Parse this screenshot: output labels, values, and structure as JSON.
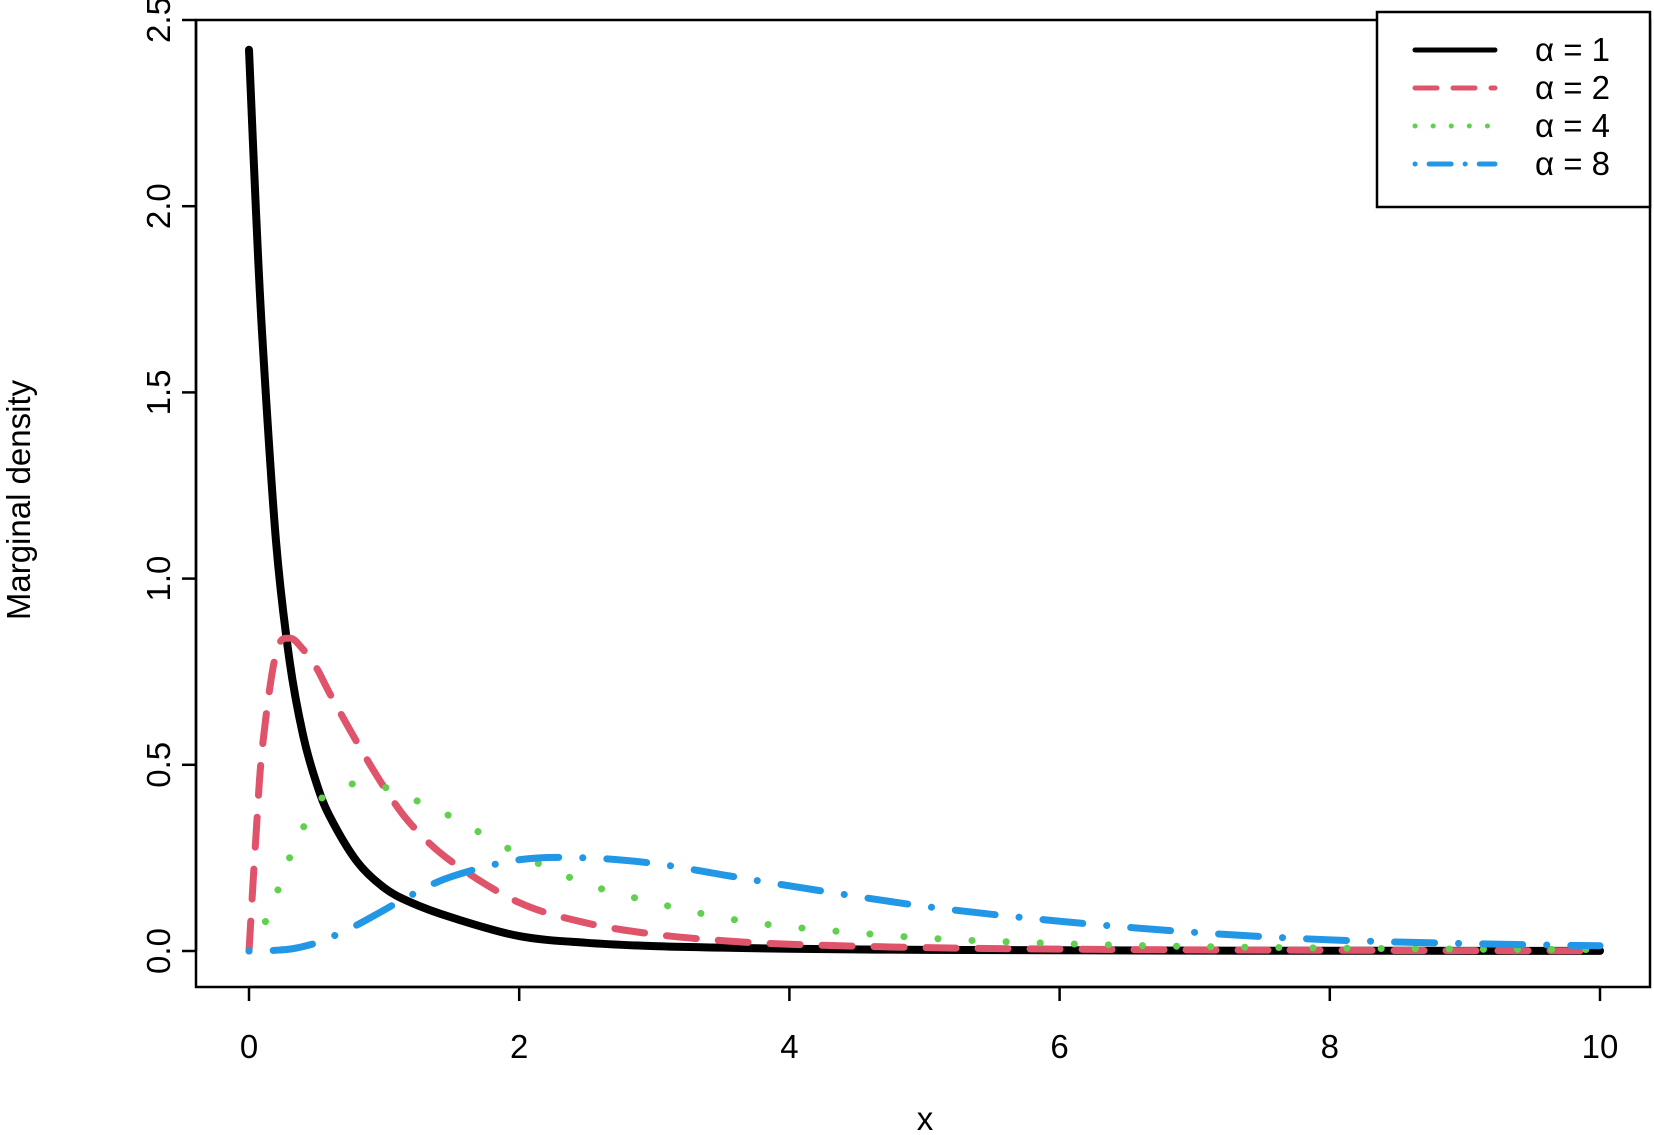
{
  "chart_data": {
    "type": "line",
    "xlabel": "x",
    "ylabel": "Marginal density",
    "xlim": [
      0,
      10
    ],
    "ylim": [
      0,
      2.5
    ],
    "x_ticks": [
      "0",
      "2",
      "4",
      "6",
      "8",
      "10"
    ],
    "y_ticks": [
      "0.0",
      "0.5",
      "1.0",
      "1.5",
      "2.0",
      "2.5"
    ],
    "grid": false,
    "legend_position": "top-right",
    "x": [
      0,
      0.05,
      0.1,
      0.2,
      0.3,
      0.4,
      0.5,
      0.6,
      0.8,
      1.0,
      1.2,
      1.5,
      2.0,
      2.5,
      3.0,
      3.5,
      4.0,
      5.0,
      6.0,
      7.0,
      8.0,
      9.0,
      10.0
    ],
    "series": [
      {
        "name": "α = 1",
        "color": "#000000",
        "style": "solid",
        "values": [
          2.42,
          2.0,
          1.64,
          1.1,
          0.78,
          0.58,
          0.45,
          0.36,
          0.24,
          0.17,
          0.13,
          0.09,
          0.04,
          0.022,
          0.013,
          0.009,
          0.006,
          0.003,
          0.002,
          0.001,
          0.0007,
          0.0005,
          0.0003
        ]
      },
      {
        "name": "α = 2",
        "color": "#DF536B",
        "style": "dashed",
        "values": [
          0.0,
          0.3,
          0.55,
          0.8,
          0.84,
          0.81,
          0.76,
          0.69,
          0.56,
          0.44,
          0.34,
          0.24,
          0.13,
          0.075,
          0.045,
          0.028,
          0.018,
          0.009,
          0.005,
          0.003,
          0.002,
          0.001,
          0.0007
        ]
      },
      {
        "name": "α = 4",
        "color": "#61D04F",
        "style": "dotted",
        "values": [
          0.0,
          0.02,
          0.06,
          0.15,
          0.25,
          0.33,
          0.39,
          0.43,
          0.45,
          0.44,
          0.41,
          0.36,
          0.26,
          0.18,
          0.13,
          0.09,
          0.065,
          0.035,
          0.02,
          0.012,
          0.008,
          0.005,
          0.004
        ]
      },
      {
        "name": "α = 8",
        "color": "#2297E6",
        "style": "dotdash",
        "values": [
          0.0,
          0.0,
          0.0,
          0.002,
          0.005,
          0.012,
          0.022,
          0.036,
          0.07,
          0.11,
          0.15,
          0.2,
          0.245,
          0.25,
          0.235,
          0.205,
          0.175,
          0.12,
          0.08,
          0.05,
          0.03,
          0.02,
          0.014
        ]
      }
    ]
  }
}
